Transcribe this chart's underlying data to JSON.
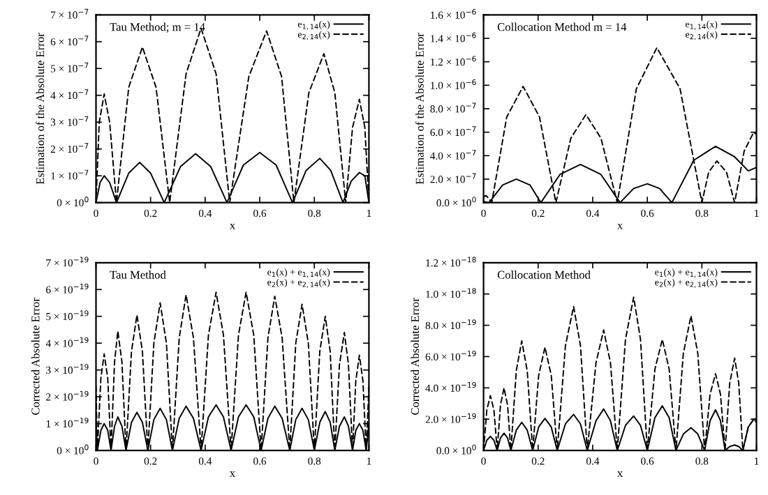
{
  "chart_data": [
    {
      "type": "line",
      "title": "Tau Method; m = 14",
      "xlabel": "x",
      "ylabel": "Estimation of the Absolute Error",
      "xlim": [
        0,
        1
      ],
      "ylim": [
        0,
        7e-07
      ],
      "xticks": [
        0,
        0.2,
        0.4,
        0.6,
        0.8,
        1
      ],
      "yticks": [
        {
          "value": 0,
          "label": "0 × 10$^{0}$"
        },
        {
          "value": 1e-07,
          "label": "1 × 10$^{−7}$"
        },
        {
          "value": 2e-07,
          "label": "2 × 10$^{−7}$"
        },
        {
          "value": 3e-07,
          "label": "3 × 10$^{−7}$"
        },
        {
          "value": 4e-07,
          "label": "4 × 10$^{−7}$"
        },
        {
          "value": 5e-07,
          "label": "5 × 10$^{−7}$"
        },
        {
          "value": 6e-07,
          "label": "6 × 10$^{−7}$"
        },
        {
          "value": 7e-07,
          "label": "7 × 10$^{−7}$"
        }
      ],
      "legend": "top right",
      "series": [
        {
          "name": "e$_{1,14}$(x)",
          "color": "#000000",
          "line_style": "solid",
          "x": [
            0,
            0.015,
            0.03,
            0.05,
            0.075,
            0.12,
            0.16,
            0.2,
            0.25,
            0.31,
            0.365,
            0.42,
            0.48,
            0.54,
            0.6,
            0.66,
            0.72,
            0.77,
            0.82,
            0.86,
            0.905,
            0.935,
            0.965,
            0.985,
            1
          ],
          "values": [
            0,
            7.5e-08,
            1e-07,
            7.5e-08,
            0,
            1.1e-07,
            1.5e-07,
            1.1e-07,
            0,
            1.35e-07,
            1.82e-07,
            1.35e-07,
            0,
            1.4e-07,
            1.87e-07,
            1.4e-07,
            0,
            1.2e-07,
            1.65e-07,
            1.2e-07,
            0,
            8e-08,
            1.12e-07,
            1e-07,
            0
          ]
        },
        {
          "name": "e$_{2,14}$(x)",
          "color": "#000000",
          "line_style": "dashed",
          "x": [
            0,
            0.012,
            0.03,
            0.05,
            0.075,
            0.12,
            0.17,
            0.22,
            0.27,
            0.33,
            0.385,
            0.44,
            0.49,
            0.56,
            0.625,
            0.68,
            0.725,
            0.78,
            0.835,
            0.875,
            0.915,
            0.94,
            0.965,
            0.985,
            1
          ],
          "values": [
            0,
            3e-07,
            4.05e-07,
            3e-07,
            0,
            4.3e-07,
            5.8e-07,
            4.3e-07,
            0,
            4.8e-07,
            6.5e-07,
            4.8e-07,
            0,
            4.7e-07,
            6.4e-07,
            4.7e-07,
            0,
            4.1e-07,
            5.55e-07,
            4.1e-07,
            0,
            2.8e-07,
            3.85e-07,
            2.8e-07,
            0
          ]
        }
      ]
    },
    {
      "type": "line",
      "title": "Collocation Method m = 14",
      "xlabel": "x",
      "ylabel": "Estimation of the Absolute Error",
      "xlim": [
        0,
        1
      ],
      "ylim": [
        0,
        1.6e-06
      ],
      "xticks": [
        0,
        0.2,
        0.4,
        0.6,
        0.8,
        1
      ],
      "yticks": [
        {
          "value": 0,
          "label": "0.0 × 10$^{0}$"
        },
        {
          "value": 2e-07,
          "label": "2.0 × 10$^{−7}$"
        },
        {
          "value": 4e-07,
          "label": "4.0 × 10$^{−7}$"
        },
        {
          "value": 6e-07,
          "label": "6.0 × 10$^{−7}$"
        },
        {
          "value": 8e-07,
          "label": "8.0 × 10$^{−7}$"
        },
        {
          "value": 1e-06,
          "label": "1.0 × 10$^{−6}$"
        },
        {
          "value": 1.2e-06,
          "label": "1.2 × 10$^{−6}$"
        },
        {
          "value": 1.4e-06,
          "label": "1.4 × 10$^{−6}$"
        },
        {
          "value": 1.6e-06,
          "label": "1.6 × 10$^{−6}$"
        }
      ],
      "legend": "top right",
      "series": [
        {
          "name": "e$_{1,14}$(x)",
          "color": "#000000",
          "line_style": "solid",
          "x": [
            0,
            0.02,
            0.07,
            0.12,
            0.17,
            0.21,
            0.28,
            0.355,
            0.43,
            0.5,
            0.55,
            0.6,
            0.645,
            0.69,
            0.77,
            0.85,
            0.92,
            0.97,
            1
          ],
          "values": [
            1e-08,
            0,
            1.5e-07,
            2e-07,
            1.5e-07,
            0,
            2.4e-07,
            3.25e-07,
            2.4e-07,
            0,
            1.2e-07,
            1.6e-07,
            1.2e-07,
            0,
            3.6e-07,
            4.8e-07,
            3.9e-07,
            2.7e-07,
            3e-07
          ]
        },
        {
          "name": "e$_{2,14}$(x)",
          "color": "#000000",
          "line_style": "dashed",
          "x": [
            0,
            0.01,
            0.03,
            0.085,
            0.145,
            0.205,
            0.265,
            0.32,
            0.375,
            0.43,
            0.49,
            0.56,
            0.635,
            0.72,
            0.8,
            0.825,
            0.855,
            0.89,
            0.92,
            0.955,
            0.99,
            1
          ],
          "values": [
            5e-08,
            6e-08,
            0,
            7.3e-07,
            9.9e-07,
            7.3e-07,
            0,
            5.5e-07,
            7.5e-07,
            5.5e-07,
            0,
            9.7e-07,
            1.32e-06,
            9.7e-07,
            0,
            2.6e-07,
            3.55e-07,
            2.6e-07,
            0,
            4.4e-07,
            6e-07,
            5.8e-07
          ]
        }
      ]
    },
    {
      "type": "line",
      "title": "Tau Method",
      "xlabel": "x",
      "ylabel": "Corrected Absolute Error",
      "xlim": [
        0,
        1
      ],
      "ylim": [
        0,
        7e-19
      ],
      "xticks": [
        0,
        0.2,
        0.4,
        0.6,
        0.8,
        1
      ],
      "yticks": [
        {
          "value": 0,
          "label": "0 × 10$^{0}$"
        },
        {
          "value": 1e-19,
          "label": "1 × 10$^{−19}$"
        },
        {
          "value": 2e-19,
          "label": "2 × 10$^{−19}$"
        },
        {
          "value": 3e-19,
          "label": "3 × 10$^{−19}$"
        },
        {
          "value": 4e-19,
          "label": "4 × 10$^{−19}$"
        },
        {
          "value": 5e-19,
          "label": "5 × 10$^{−19}$"
        },
        {
          "value": 6e-19,
          "label": "6 × 10$^{−19}$"
        },
        {
          "value": 7e-19,
          "label": "7 × 10$^{−19}$"
        }
      ],
      "legend": "top right",
      "x": [
        0,
        0.005,
        0.018,
        0.03,
        0.043,
        0.055,
        0.068,
        0.08,
        0.095,
        0.11,
        0.13,
        0.15,
        0.17,
        0.19,
        0.212,
        0.235,
        0.258,
        0.28,
        0.305,
        0.33,
        0.357,
        0.385,
        0.412,
        0.44,
        0.467,
        0.495,
        0.522,
        0.55,
        0.578,
        0.605,
        0.63,
        0.655,
        0.682,
        0.71,
        0.732,
        0.755,
        0.778,
        0.8,
        0.82,
        0.84,
        0.858,
        0.875,
        0.892,
        0.91,
        0.925,
        0.94,
        0.952,
        0.965,
        0.978,
        0.99,
        1
      ],
      "series": [
        {
          "name": "e$_{1}$(x) + e$_{1,14}$(x)",
          "color": "#000000",
          "line_style": "solid",
          "values": [
            1e-19,
            0,
            7.5e-20,
            1e-19,
            7.5e-20,
            0,
            9e-20,
            1.25e-19,
            9e-20,
            0,
            1.05e-19,
            1.42e-19,
            1.05e-19,
            0,
            1.15e-19,
            1.57e-19,
            1.15e-19,
            0,
            1.2e-19,
            1.65e-19,
            1.2e-19,
            0,
            1.25e-19,
            1.7e-19,
            1.25e-19,
            0,
            1.25e-19,
            1.7e-19,
            1.25e-19,
            0,
            1.2e-19,
            1.65e-19,
            1.2e-19,
            0,
            1.15e-19,
            1.57e-19,
            1.15e-19,
            0,
            1.05e-19,
            1.45e-19,
            1.05e-19,
            0,
            9e-20,
            1.25e-19,
            9e-20,
            0,
            7.5e-20,
            1e-19,
            7.5e-20,
            0,
            1e-19
          ]
        },
        {
          "name": "e$_{2}$(x) + e$_{2,14}$(x)",
          "color": "#000000",
          "line_style": "dashed",
          "values": [
            2.4e-19,
            0,
            2.7e-19,
            3.6e-19,
            2.7e-19,
            0,
            3.3e-19,
            4.45e-19,
            3.3e-19,
            0,
            3.7e-19,
            5.05e-19,
            3.7e-19,
            0,
            4e-19,
            5.5e-19,
            4e-19,
            0,
            4.2e-19,
            5.8e-19,
            4.2e-19,
            0,
            4.3e-19,
            5.9e-19,
            4.3e-19,
            0,
            4.3e-19,
            5.9e-19,
            4.3e-19,
            0,
            4.2e-19,
            5.75e-19,
            4.2e-19,
            0,
            4e-19,
            5.45e-19,
            4e-19,
            0,
            3.7e-19,
            5e-19,
            3.7e-19,
            0,
            3.2e-19,
            4.4e-19,
            3.2e-19,
            0,
            2.6e-19,
            3.55e-19,
            2.6e-19,
            0,
            2.4e-19
          ]
        }
      ]
    },
    {
      "type": "line",
      "title": "Collocation Method",
      "xlabel": "x",
      "ylabel": "Corrected Absolute Error",
      "xlim": [
        0,
        1
      ],
      "ylim": [
        0,
        1.2e-18
      ],
      "xticks": [
        0,
        0.2,
        0.4,
        0.6,
        0.8,
        1
      ],
      "yticks": [
        {
          "value": 0,
          "label": "0.0 × 10$^{0}$"
        },
        {
          "value": 2e-19,
          "label": "2.0 × 10$^{−19}$"
        },
        {
          "value": 4e-19,
          "label": "4.0 × 10$^{−19}$"
        },
        {
          "value": 6e-19,
          "label": "6.0 × 10$^{−19}$"
        },
        {
          "value": 8e-19,
          "label": "8.0 × 10$^{−19}$"
        },
        {
          "value": 1e-18,
          "label": "1.0 × 10$^{−18}$"
        },
        {
          "value": 1.2e-18,
          "label": "1.2 × 10$^{−18}$"
        }
      ],
      "legend": "top right",
      "x": [
        0,
        0.012,
        0.025,
        0.038,
        0.05,
        0.062,
        0.075,
        0.088,
        0.1,
        0.12,
        0.14,
        0.16,
        0.18,
        0.202,
        0.225,
        0.248,
        0.27,
        0.3,
        0.33,
        0.355,
        0.38,
        0.412,
        0.44,
        0.465,
        0.49,
        0.52,
        0.55,
        0.575,
        0.6,
        0.628,
        0.655,
        0.68,
        0.705,
        0.732,
        0.76,
        0.785,
        0.81,
        0.83,
        0.85,
        0.868,
        0.885,
        0.902,
        0.92,
        0.935,
        0.95,
        0.97,
        0.99,
        1
      ],
      "series": [
        {
          "name": "e$_{1}$(x) + e$_{1,14}$(x)",
          "color": "#000000",
          "line_style": "solid",
          "values": [
            0,
            6.5e-20,
            9e-20,
            6.5e-20,
            0,
            8e-20,
            1.1e-19,
            8e-20,
            0,
            1.3e-19,
            1.8e-19,
            1.3e-19,
            0,
            1.5e-19,
            2.05e-19,
            1.5e-19,
            0,
            1.7e-19,
            2.3e-19,
            1.7e-19,
            0,
            1.9e-19,
            2.65e-19,
            1.9e-19,
            0,
            1.6e-19,
            2.2e-19,
            1.6e-19,
            0,
            2.1e-19,
            2.85e-19,
            2.1e-19,
            0,
            1.05e-19,
            1.45e-19,
            1.05e-19,
            0,
            1.9e-19,
            2.6e-19,
            1.9e-19,
            0,
            2.5e-20,
            3.5e-20,
            2.5e-20,
            0,
            1.5e-19,
            2e-19,
            2e-19
          ]
        },
        {
          "name": "e$_{2}$(x) + e$_{2,14}$(x)",
          "color": "#000000",
          "line_style": "dashed",
          "values": [
            0,
            2.6e-19,
            3.5e-19,
            2.6e-19,
            0,
            2.9e-19,
            4e-19,
            2.9e-19,
            0,
            5.1e-19,
            7e-19,
            5.1e-19,
            0,
            4.8e-19,
            6.6e-19,
            4.8e-19,
            0,
            6.7e-19,
            9.2e-19,
            6.7e-19,
            0,
            5.6e-19,
            7.7e-19,
            5.6e-19,
            0,
            7.1e-19,
            9.8e-19,
            7.1e-19,
            0,
            5.2e-19,
            7.1e-19,
            5.2e-19,
            0,
            6.2e-19,
            8.6e-19,
            6.2e-19,
            0,
            3.6e-19,
            4.9e-19,
            3.6e-19,
            0,
            4.3e-19,
            5.9e-19,
            4.3e-19,
            0,
            1.5e-19,
            2e-19,
            1.8e-19
          ]
        }
      ]
    }
  ]
}
